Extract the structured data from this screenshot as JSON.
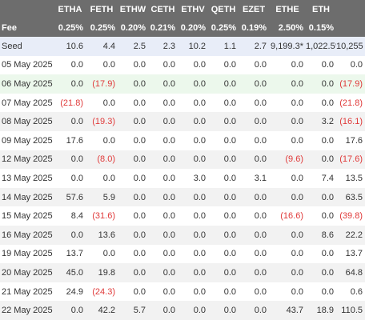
{
  "header": {
    "columns": [
      "ETHA",
      "FETH",
      "ETHW",
      "CETH",
      "ETHV",
      "QETH",
      "EZET",
      "ETHE",
      "ETH"
    ],
    "fee_label": "Fee",
    "fees": [
      "0.25%",
      "0.25%",
      "0.20%",
      "0.21%",
      "0.20%",
      "0.25%",
      "0.19%",
      "2.50%",
      "0.15%"
    ]
  },
  "rows": [
    {
      "label": "Seed",
      "cells": [
        "10.6",
        "4.4",
        "2.5",
        "2.3",
        "10.2",
        "1.1",
        "2.7",
        "9,199.3*",
        "1,022.5*",
        "10,255"
      ]
    },
    {
      "label": "05 May 2025",
      "cells": [
        "0.0",
        "0.0",
        "0.0",
        "0.0",
        "0.0",
        "0.0",
        "0.0",
        "0.0",
        "0.0",
        "0.0"
      ]
    },
    {
      "label": "06 May 2025",
      "cells": [
        "0.0",
        "(17.9)",
        "0.0",
        "0.0",
        "0.0",
        "0.0",
        "0.0",
        "0.0",
        "0.0",
        "(17.9)"
      ]
    },
    {
      "label": "07 May 2025",
      "cells": [
        "(21.8)",
        "0.0",
        "0.0",
        "0.0",
        "0.0",
        "0.0",
        "0.0",
        "0.0",
        "0.0",
        "(21.8)"
      ]
    },
    {
      "label": "08 May 2025",
      "cells": [
        "0.0",
        "(19.3)",
        "0.0",
        "0.0",
        "0.0",
        "0.0",
        "0.0",
        "0.0",
        "3.2",
        "(16.1)"
      ]
    },
    {
      "label": "09 May 2025",
      "cells": [
        "17.6",
        "0.0",
        "0.0",
        "0.0",
        "0.0",
        "0.0",
        "0.0",
        "0.0",
        "0.0",
        "17.6"
      ]
    },
    {
      "label": "12 May 2025",
      "cells": [
        "0.0",
        "(8.0)",
        "0.0",
        "0.0",
        "0.0",
        "0.0",
        "0.0",
        "(9.6)",
        "0.0",
        "(17.6)"
      ]
    },
    {
      "label": "13 May 2025",
      "cells": [
        "0.0",
        "0.0",
        "0.0",
        "0.0",
        "3.0",
        "0.0",
        "3.1",
        "0.0",
        "7.4",
        "13.5"
      ]
    },
    {
      "label": "14 May 2025",
      "cells": [
        "57.6",
        "5.9",
        "0.0",
        "0.0",
        "0.0",
        "0.0",
        "0.0",
        "0.0",
        "0.0",
        "63.5"
      ]
    },
    {
      "label": "15 May 2025",
      "cells": [
        "8.4",
        "(31.6)",
        "0.0",
        "0.0",
        "0.0",
        "0.0",
        "0.0",
        "(16.6)",
        "0.0",
        "(39.8)"
      ]
    },
    {
      "label": "16 May 2025",
      "cells": [
        "0.0",
        "13.6",
        "0.0",
        "0.0",
        "0.0",
        "0.0",
        "0.0",
        "0.0",
        "8.6",
        "22.2"
      ]
    },
    {
      "label": "19 May 2025",
      "cells": [
        "13.7",
        "0.0",
        "0.0",
        "0.0",
        "0.0",
        "0.0",
        "0.0",
        "0.0",
        "0.0",
        "13.7"
      ]
    },
    {
      "label": "20 May 2025",
      "cells": [
        "45.0",
        "19.8",
        "0.0",
        "0.0",
        "0.0",
        "0.0",
        "0.0",
        "0.0",
        "0.0",
        "64.8"
      ]
    },
    {
      "label": "21 May 2025",
      "cells": [
        "24.9",
        "(24.3)",
        "0.0",
        "0.0",
        "0.0",
        "0.0",
        "0.0",
        "0.0",
        "0.0",
        "0.6"
      ]
    },
    {
      "label": "22 May 2025",
      "cells": [
        "0.0",
        "42.2",
        "5.7",
        "0.0",
        "0.0",
        "0.0",
        "0.0",
        "43.7",
        "18.9",
        "110.5"
      ]
    }
  ]
}
